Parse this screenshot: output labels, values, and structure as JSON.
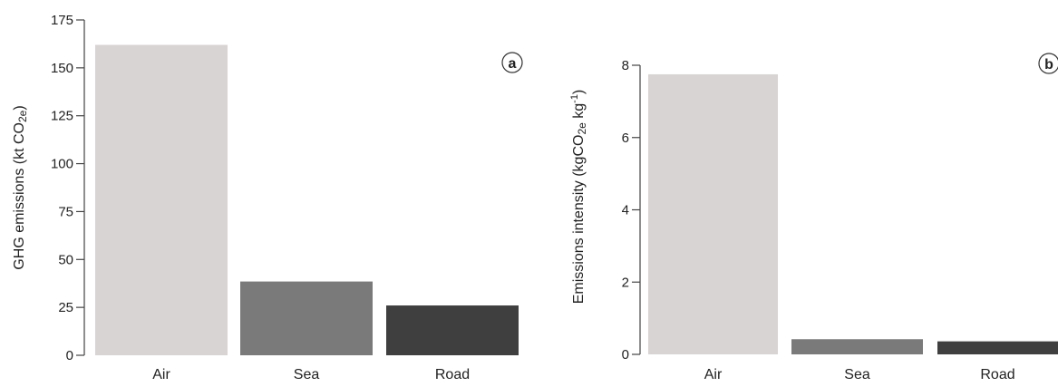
{
  "chart_data": [
    {
      "type": "bar",
      "panel_label": "a",
      "categories": [
        "Air",
        "Sea",
        "Road"
      ],
      "values": [
        162,
        38.5,
        26
      ],
      "colors": [
        "#d9d4d4",
        "#7a7a7a",
        "#3f3f3f"
      ],
      "ylabel": "GHG emissions (kt CO2e)",
      "ylabel_main": "GHG emissions (kt CO",
      "ylabel_sub": "2e",
      "ylabel_tail": ")",
      "ylim": [
        0,
        175
      ],
      "yticks": [
        0,
        25,
        50,
        75,
        100,
        125,
        150,
        175
      ],
      "grid": false
    },
    {
      "type": "bar",
      "panel_label": "b",
      "categories": [
        "Air",
        "Sea",
        "Road"
      ],
      "values": [
        7.75,
        0.42,
        0.36
      ],
      "colors": [
        "#d9d4d4",
        "#7a7a7a",
        "#3f3f3f"
      ],
      "ylabel": "Emissions intensity (kgCO2e kg-1)",
      "ylabel_main": "Emissions intensity (kgCO",
      "ylabel_sub": "2e",
      "ylabel_mid": " kg",
      "ylabel_sup": "-1",
      "ylabel_tail": ")",
      "ylim": [
        0,
        8
      ],
      "yticks": [
        0,
        2,
        4,
        6,
        8
      ],
      "grid": false
    }
  ]
}
